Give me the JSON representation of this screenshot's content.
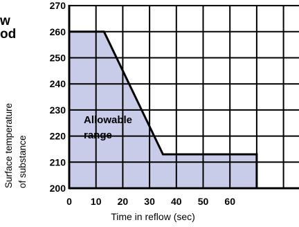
{
  "heading_fragment": {
    "line1": "w",
    "line2": "od"
  },
  "chart_data": {
    "type": "area",
    "title": "",
    "xlabel": "Time in reflow (sec)",
    "ylabel_lines": [
      "Surface temperature",
      "of substance"
    ],
    "xlim": [
      0,
      70
    ],
    "ylim": [
      200,
      270
    ],
    "x_ticks": [
      0,
      10,
      20,
      30,
      40,
      50,
      60
    ],
    "y_ticks": [
      200,
      210,
      220,
      230,
      240,
      250,
      260,
      270
    ],
    "grid": true,
    "region_label_lines": [
      "Allowable",
      "range"
    ],
    "region_boundary": {
      "x": [
        0,
        0,
        13,
        35,
        70,
        70
      ],
      "y": [
        200,
        260,
        260,
        213,
        213,
        200
      ]
    },
    "colors": {
      "region_fill": "#c9cce8",
      "grid": "#000000",
      "boundary": "#000000"
    }
  }
}
